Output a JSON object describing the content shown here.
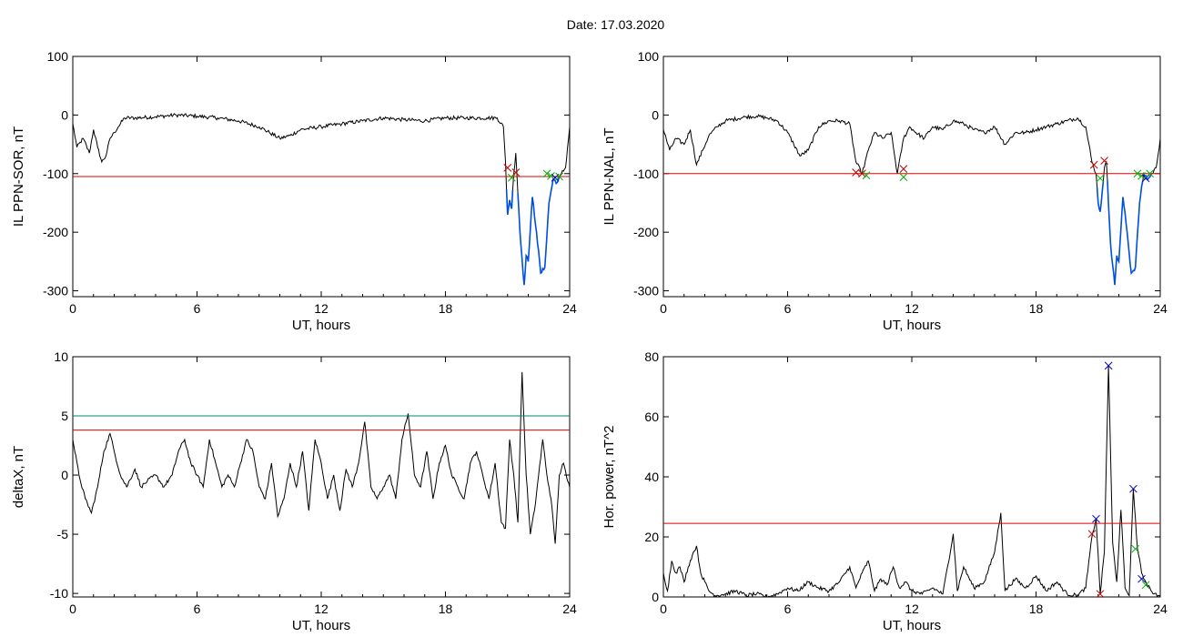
{
  "page": {
    "date_label": "Date:  17.03.2020"
  },
  "chart_data": [
    {
      "id": "p1",
      "type": "line",
      "xlabel": "UT, hours",
      "ylabel": "IL PPN-SOR, nT",
      "xlim": [
        0,
        24
      ],
      "ylim": [
        -310,
        100
      ],
      "xticks": [
        0,
        6,
        12,
        18,
        24
      ],
      "yticks": [
        100,
        0,
        -100,
        -200,
        -300
      ],
      "colors": {
        "main": "#000000",
        "threshold": "#e00000",
        "highlight": "#0050e0"
      },
      "threshold": -105,
      "x": [
        0,
        0.2,
        0.5,
        0.8,
        1.0,
        1.2,
        1.4,
        1.6,
        1.8,
        2.0,
        2.2,
        2.5,
        3,
        4,
        5,
        6,
        7,
        8,
        9,
        9.5,
        10,
        10.5,
        11,
        12,
        13,
        14,
        15,
        16,
        17,
        18,
        19,
        20,
        20.5,
        20.8,
        20.9,
        21.0,
        21.1,
        21.2,
        21.3,
        21.4,
        21.6,
        21.8,
        21.9,
        22.0,
        22.2,
        22.4,
        22.6,
        22.8,
        23.0,
        23.2,
        23.4,
        23.6,
        23.8,
        24
      ],
      "y": [
        -15,
        -55,
        -40,
        -65,
        -25,
        -55,
        -80,
        -70,
        -40,
        -30,
        -20,
        -5,
        -5,
        -3,
        0,
        -2,
        -5,
        -10,
        -20,
        -30,
        -40,
        -35,
        -25,
        -20,
        -15,
        -10,
        -5,
        -8,
        -10,
        -5,
        -5,
        -5,
        -5,
        -20,
        -80,
        -170,
        -145,
        -160,
        -100,
        -65,
        -200,
        -290,
        -240,
        -250,
        -140,
        -200,
        -270,
        -260,
        -150,
        -110,
        -115,
        -100,
        -90,
        -20
      ],
      "highlight_from": 20.9,
      "markers": [
        {
          "x": 21.0,
          "y": -90,
          "color": "#c00000"
        },
        {
          "x": 21.4,
          "y": -98,
          "color": "#c00000"
        },
        {
          "x": 21.2,
          "y": -107,
          "color": "#00b000"
        },
        {
          "x": 22.9,
          "y": -100,
          "color": "#00b000"
        },
        {
          "x": 23.1,
          "y": -104,
          "color": "#00b000"
        },
        {
          "x": 23.3,
          "y": -107,
          "color": "#0000c0"
        },
        {
          "x": 23.5,
          "y": -105,
          "color": "#00b000"
        }
      ]
    },
    {
      "id": "p2",
      "type": "line",
      "xlabel": "UT, hours",
      "ylabel": "IL PPN-NAL, nT",
      "xlim": [
        0,
        24
      ],
      "ylim": [
        -310,
        100
      ],
      "xticks": [
        0,
        6,
        12,
        18,
        24
      ],
      "yticks": [
        100,
        0,
        -100,
        -200,
        -300
      ],
      "colors": {
        "main": "#000000",
        "threshold": "#e00000",
        "highlight": "#0050e0"
      },
      "threshold": -100,
      "x": [
        0,
        0.3,
        0.6,
        1.0,
        1.3,
        1.6,
        1.9,
        2.2,
        2.6,
        3,
        4,
        4.5,
        5,
        5.5,
        6.0,
        6.3,
        6.6,
        7.0,
        7.5,
        8.0,
        8.5,
        9.0,
        9.3,
        9.6,
        9.9,
        10.2,
        10.6,
        11.0,
        11.3,
        11.6,
        11.9,
        12.2,
        12.6,
        13.0,
        13.5,
        14,
        14.5,
        15,
        15.5,
        16,
        16.5,
        17,
        17.5,
        18,
        18.5,
        19,
        19.5,
        20.0,
        20.4,
        20.7,
        20.9,
        21.0,
        21.1,
        21.2,
        21.3,
        21.4,
        21.6,
        21.8,
        21.9,
        22.0,
        22.2,
        22.4,
        22.6,
        22.8,
        23.0,
        23.2,
        23.4,
        23.6,
        23.8,
        24
      ],
      "y": [
        -25,
        -60,
        -40,
        -50,
        -25,
        -85,
        -60,
        -35,
        -20,
        -10,
        -3,
        -2,
        -5,
        -10,
        -30,
        -50,
        -70,
        -60,
        -20,
        -10,
        -10,
        -15,
        -80,
        -100,
        -60,
        -30,
        -40,
        -30,
        -100,
        -40,
        -20,
        -30,
        -40,
        -20,
        -25,
        -10,
        -15,
        -25,
        -30,
        -20,
        -50,
        -30,
        -30,
        -25,
        -20,
        -15,
        -10,
        -5,
        -20,
        -80,
        -100,
        -150,
        -165,
        -130,
        -90,
        -80,
        -220,
        -290,
        -240,
        -250,
        -140,
        -200,
        -270,
        -260,
        -150,
        -100,
        -110,
        -100,
        -90,
        -40
      ],
      "highlight_from": 20.9,
      "markers": [
        {
          "x": 9.3,
          "y": -98,
          "color": "#c00000"
        },
        {
          "x": 9.6,
          "y": -100,
          "color": "#c00000"
        },
        {
          "x": 9.8,
          "y": -103,
          "color": "#00b000"
        },
        {
          "x": 11.6,
          "y": -92,
          "color": "#c00000"
        },
        {
          "x": 11.6,
          "y": -106,
          "color": "#00b000"
        },
        {
          "x": 20.8,
          "y": -85,
          "color": "#c00000"
        },
        {
          "x": 21.3,
          "y": -78,
          "color": "#c00000"
        },
        {
          "x": 21.1,
          "y": -108,
          "color": "#00b000"
        },
        {
          "x": 22.9,
          "y": -100,
          "color": "#00b000"
        },
        {
          "x": 23.1,
          "y": -104,
          "color": "#00b000"
        },
        {
          "x": 23.3,
          "y": -108,
          "color": "#0000c0"
        },
        {
          "x": 23.5,
          "y": -100,
          "color": "#00b000"
        }
      ]
    },
    {
      "id": "p3",
      "type": "line",
      "xlabel": "UT, hours",
      "ylabel": "deltaX, nT",
      "xlim": [
        0,
        24
      ],
      "ylim": [
        -10.3,
        10
      ],
      "xticks": [
        0,
        6,
        12,
        18,
        24
      ],
      "yticks": [
        10,
        5,
        0,
        -5,
        -10
      ],
      "colors": {
        "main": "#000000",
        "threshold": "#e00000",
        "threshold2": "#008080"
      },
      "threshold": 3.8,
      "threshold2": 5.0,
      "x": [
        0,
        0.3,
        0.6,
        0.9,
        1.2,
        1.5,
        1.8,
        2.0,
        2.3,
        2.6,
        3.0,
        3.3,
        3.6,
        4.0,
        4.4,
        4.8,
        5.1,
        5.4,
        5.7,
        6.0,
        6.3,
        6.6,
        6.9,
        7.2,
        7.5,
        7.8,
        8.1,
        8.4,
        8.7,
        9.0,
        9.3,
        9.6,
        9.9,
        10.2,
        10.5,
        10.8,
        11.1,
        11.4,
        11.7,
        12.0,
        12.3,
        12.6,
        12.9,
        13.2,
        13.5,
        13.8,
        14.1,
        14.4,
        14.7,
        15.0,
        15.3,
        15.6,
        15.9,
        16.2,
        16.5,
        16.8,
        17.1,
        17.4,
        17.7,
        18.0,
        18.3,
        18.6,
        18.9,
        19.2,
        19.5,
        19.8,
        20.1,
        20.4,
        20.7,
        20.9,
        21.1,
        21.3,
        21.5,
        21.7,
        21.9,
        22.1,
        22.3,
        22.5,
        22.7,
        22.9,
        23.1,
        23.3,
        23.5,
        23.7,
        23.9,
        24
      ],
      "y": [
        3,
        0,
        -2,
        -3.2,
        -1,
        2,
        3.5,
        2,
        0,
        -1,
        0.5,
        -1,
        -0.5,
        0,
        -1,
        0,
        2,
        3,
        1,
        0,
        -1,
        3,
        1,
        -1,
        0,
        -1,
        1,
        3,
        2,
        -1,
        -2,
        1,
        -3.5,
        -2,
        1,
        -1,
        2,
        -3,
        3,
        1,
        -2,
        0,
        -3,
        0.5,
        -1,
        1,
        4.5,
        -1,
        -2,
        -1,
        0,
        -2,
        3,
        5.2,
        0,
        -1,
        2,
        -2,
        1,
        2.5,
        0,
        -1,
        -2,
        1,
        2,
        0,
        -2,
        1,
        -4,
        -4.5,
        3,
        0,
        -4,
        8.7,
        0,
        -5,
        -3,
        0,
        3,
        0,
        -2,
        -5.8,
        0,
        1,
        -0.5,
        -1
      ],
      "markers": []
    },
    {
      "id": "p4",
      "type": "line",
      "xlabel": "UT, hours",
      "ylabel": "Hor. power, nT^2",
      "xlim": [
        0,
        24
      ],
      "ylim": [
        0,
        80
      ],
      "xticks": [
        0,
        6,
        12,
        18,
        24
      ],
      "yticks": [
        80,
        60,
        40,
        20,
        0
      ],
      "colors": {
        "main": "#000000",
        "threshold": "#e00000"
      },
      "threshold": 24.5,
      "x": [
        0,
        0.2,
        0.4,
        0.6,
        0.8,
        1.0,
        1.2,
        1.4,
        1.6,
        1.8,
        2.0,
        2.2,
        2.5,
        3.0,
        3.5,
        4.0,
        4.5,
        5.0,
        5.5,
        6.0,
        6.5,
        7.0,
        7.5,
        8.0,
        8.5,
        9.0,
        9.3,
        9.6,
        9.9,
        10.2,
        10.5,
        10.8,
        11.1,
        11.4,
        11.7,
        12.0,
        12.5,
        13.0,
        13.5,
        14.0,
        14.2,
        14.5,
        15.0,
        15.5,
        16.0,
        16.3,
        16.5,
        17.0,
        17.5,
        18.0,
        18.5,
        19.0,
        19.5,
        20.0,
        20.4,
        20.7,
        20.9,
        21.1,
        21.3,
        21.5,
        21.7,
        21.9,
        22.1,
        22.3,
        22.5,
        22.7,
        22.9,
        23.1,
        23.3,
        23.5,
        23.7,
        23.9,
        24
      ],
      "y": [
        8,
        2,
        12,
        8,
        10,
        5,
        10,
        14,
        17,
        8,
        5,
        2,
        0.5,
        1,
        2,
        0.5,
        1,
        0,
        1,
        3,
        2,
        5,
        3,
        2,
        5,
        10,
        3,
        8,
        12,
        2,
        6,
        4,
        10,
        3,
        5,
        2,
        1,
        3,
        1,
        21,
        2,
        10,
        3,
        5,
        15,
        28,
        2,
        6,
        3,
        7,
        2,
        5,
        1,
        0.5,
        3,
        20,
        26,
        1,
        15,
        77,
        18,
        5,
        29,
        3,
        0.5,
        36,
        16,
        8,
        5,
        3,
        1,
        0.5,
        0
      ],
      "markers": [
        {
          "x": 20.7,
          "y": 21,
          "color": "#c00000"
        },
        {
          "x": 20.9,
          "y": 26,
          "color": "#0000c0"
        },
        {
          "x": 21.1,
          "y": 1,
          "color": "#c00000"
        },
        {
          "x": 21.5,
          "y": 77,
          "color": "#0000c0"
        },
        {
          "x": 22.7,
          "y": 36,
          "color": "#0000c0"
        },
        {
          "x": 22.8,
          "y": 16,
          "color": "#00b000"
        },
        {
          "x": 23.1,
          "y": 6,
          "color": "#0000c0"
        },
        {
          "x": 23.3,
          "y": 4,
          "color": "#00b000"
        }
      ]
    }
  ]
}
